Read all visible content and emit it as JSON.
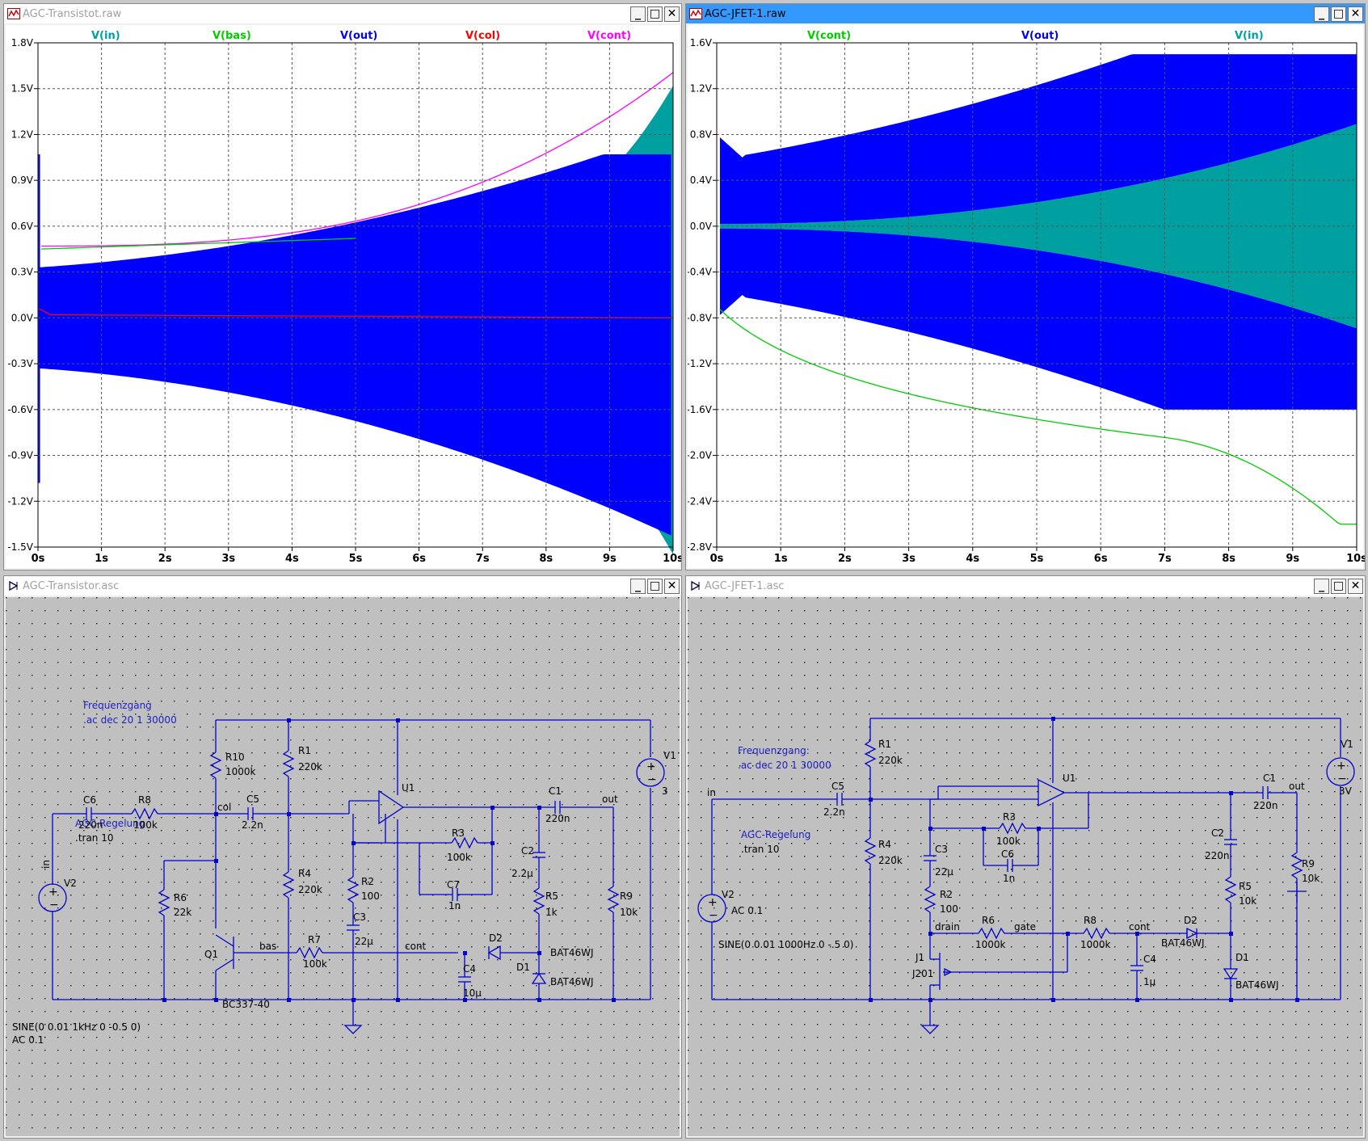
{
  "windows": {
    "plot_transistor": {
      "title": "AGC-Transistot.raw",
      "traces": [
        {
          "label": "V(in)",
          "color": "#00a0a0"
        },
        {
          "label": "V(bas)",
          "color": "#00cc00"
        },
        {
          "label": "V(out)",
          "color": "#0000ff"
        },
        {
          "label": "V(col)",
          "color": "#ff0000"
        },
        {
          "label": "V(cont)",
          "color": "#ff00ff"
        }
      ],
      "yticks": [
        "1.8V",
        "1.5V",
        "1.2V",
        "0.9V",
        "0.6V",
        "0.3V",
        "0.0V",
        "-0.3V",
        "-0.6V",
        "-0.9V",
        "-1.2V",
        "-1.5V"
      ],
      "xticks": [
        "0s",
        "1s",
        "2s",
        "3s",
        "4s",
        "5s",
        "6s",
        "7s",
        "8s",
        "9s",
        "10s"
      ]
    },
    "plot_jfet": {
      "title": "AGC-JFET-1.raw",
      "traces": [
        {
          "label": "V(cont)",
          "color": "#00cc00"
        },
        {
          "label": "V(out)",
          "color": "#0000ff"
        },
        {
          "label": "V(in)",
          "color": "#00a0a0"
        }
      ],
      "yticks": [
        "1.6V",
        "1.2V",
        "0.8V",
        "0.4V",
        "0.0V",
        "-0.4V",
        "-0.8V",
        "-1.2V",
        "-1.6V",
        "-2.0V",
        "-2.4V",
        "-2.8V"
      ],
      "xticks": [
        "0s",
        "1s",
        "2s",
        "3s",
        "4s",
        "5s",
        "6s",
        "7s",
        "8s",
        "9s",
        "10s"
      ]
    },
    "sch_transistor": {
      "title": "AGC-Transistor.asc",
      "labels": {
        "freq": "Frequenzgang",
        "ac": ".ac dec 20 1 30000",
        "agc": "AGC-Regelung",
        "tran": ".tran 10",
        "sine": "SINE(0 0.01 1kHz 0 -0.5 0)",
        "acv": "AC 0.1",
        "in": "in",
        "v2": "V2",
        "v1": "V1",
        "v1val": "3",
        "c6": "C6",
        "c6v": "220n",
        "r8": "R8",
        "r8v": "100k",
        "r10": "R10",
        "r10v": "1000k",
        "col": "col",
        "c5": "C5",
        "c5v": "2.2n",
        "r1": "R1",
        "r1v": "220k",
        "u1": "U1",
        "c1": "C1",
        "c1v": "220n",
        "out": "out",
        "r3": "R3",
        "r3v": "100k",
        "c2": "C2",
        "c2v": "2.2µ",
        "r4": "R4",
        "r4v": "220k",
        "r2": "R2",
        "r2v": "100",
        "c7": "C7",
        "c7v": "1n",
        "r5": "R5",
        "r5v": "1k",
        "r9": "R9",
        "r9v": "10k",
        "r6": "R6",
        "r6v": "22k",
        "c3": "C3",
        "c3v": "22µ",
        "q1": "Q1",
        "q1v": "BC337-40",
        "bas": "bas",
        "r7": "R7",
        "r7v": "100k",
        "cont": "cont",
        "d2": "D2",
        "d2v": "BAT46WJ",
        "d1": "D1",
        "d1v": "BAT46WJ",
        "c4": "C4",
        "c4v": "10µ"
      }
    },
    "sch_jfet": {
      "title": "AGC-JFET-1.asc",
      "labels": {
        "freq": "Frequenzgang:",
        "ac": ".ac dec 20 1 30000",
        "agc": "AGC-Regelung",
        "tran": ".tran 10",
        "in": "in",
        "v2": "V2",
        "acv": "AC 0.1",
        "sine": "SINE(0 0.01 1000Hz 0 -.5 0)",
        "c5": "C5",
        "c5v": "2.2n",
        "r1": "R1",
        "r1v": "220k",
        "r4": "R4",
        "r4v": "220k",
        "u1": "U1",
        "r3": "R3",
        "r3v": "100k",
        "c6": "C6",
        "c6v": "1n",
        "c3": "C3",
        "c3v": "22µ",
        "r2": "R2",
        "r2v": "100",
        "drain": "drain",
        "r6": "R6",
        "r6v": "1000k",
        "gate": "gate",
        "r8": "R8",
        "r8v": "1000k",
        "cont": "cont",
        "j1": "J1",
        "j1v": "J201",
        "c4": "C4",
        "c4v": "1µ",
        "d2": "D2",
        "d2v": "BAT46WJ",
        "d1": "D1",
        "d1v": "BAT46WJ",
        "c1": "C1",
        "c1v": "220n",
        "out": "out",
        "c2": "C2",
        "c2v": "220n",
        "r5": "R5",
        "r5v": "10k",
        "r9": "R9",
        "r9v": "10k",
        "v1": "V1",
        "v1val": "3V"
      }
    }
  }
}
